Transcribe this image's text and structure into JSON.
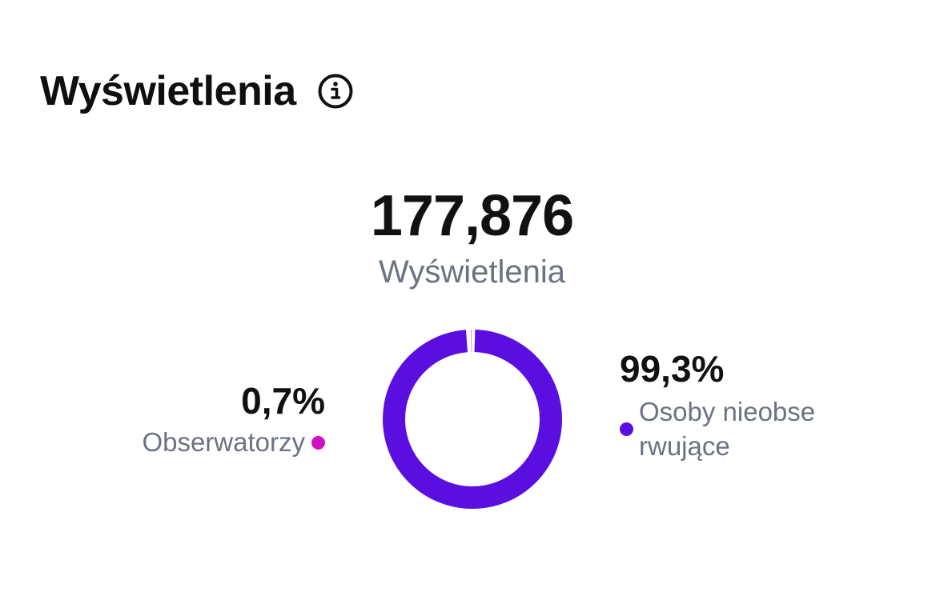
{
  "header": {
    "title": "Wyświetlenia",
    "info_icon": "info-circle-icon"
  },
  "summary": {
    "total_value": "177,876",
    "total_label": "Wyświetlenia"
  },
  "breakdown": {
    "followers": {
      "percent_label": "0,7%",
      "label": "Obserwatorzy",
      "color": "#d10fc4",
      "fraction": 0.007
    },
    "non_followers": {
      "percent_label": "99,3%",
      "label": "Osoby nieobserwujące",
      "color": "#5a0ee0",
      "fraction": 0.993
    }
  },
  "chart_data": {
    "type": "pie",
    "style": "donut",
    "title": "",
    "categories": [
      "Obserwatorzy",
      "Osoby nieobserwujące"
    ],
    "values": [
      0.7,
      99.3
    ],
    "unit": "%",
    "colors": [
      "#d10fc4",
      "#5a0ee0"
    ]
  }
}
